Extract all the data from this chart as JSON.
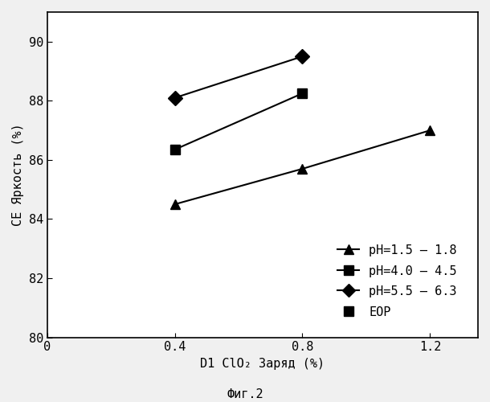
{
  "title": "",
  "xlabel": "D1 ClO₂ Заряд (%)",
  "ylabel": "CE Яркость (%)",
  "caption": "Фиг.2",
  "xlim": [
    0,
    1.35
  ],
  "ylim": [
    80,
    91
  ],
  "xticks": [
    0,
    0.4,
    0.8,
    1.2
  ],
  "yticks": [
    80,
    82,
    84,
    86,
    88,
    90
  ],
  "series": [
    {
      "label": "pH=1.5 – 1.8",
      "x": [
        0.4,
        0.8,
        1.2
      ],
      "y": [
        84.5,
        85.7,
        87.0
      ],
      "marker": "^",
      "color": "#000000",
      "markersize": 9,
      "linewidth": 1.5
    },
    {
      "label": "pH=4.0 – 4.5",
      "x": [
        0.4,
        0.8
      ],
      "y": [
        86.35,
        88.25
      ],
      "marker": "s",
      "color": "#000000",
      "markersize": 9,
      "linewidth": 1.5
    },
    {
      "label": "pH=5.5 – 6.3",
      "x": [
        0.4,
        0.8
      ],
      "y": [
        88.1,
        89.5
      ],
      "marker": "D",
      "color": "#000000",
      "markersize": 9,
      "linewidth": 1.5
    }
  ],
  "eop_label": "EOP",
  "eop_marker": "s",
  "legend_fontsize": 11,
  "axis_label_fontsize": 11,
  "tick_fontsize": 11,
  "caption_fontsize": 11,
  "background_color": "#f0f0f0",
  "figure_background": "#f0f0f0",
  "plot_background": "#ffffff"
}
